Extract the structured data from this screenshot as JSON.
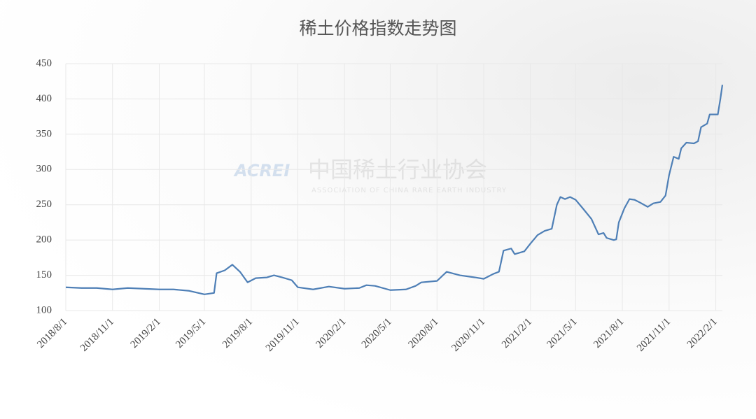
{
  "chart_data": {
    "type": "line",
    "title": "稀土价格指数走势图",
    "annotations": [
      "ACREI",
      "中国稀土行业协会",
      "ASSOCIATION OF CHINA RARE EARTH INDUSTRY"
    ],
    "x": [
      "2018/8/1",
      "2018/9/1",
      "2018/10/1",
      "2018/11/1",
      "2018/12/1",
      "2019/1/1",
      "2019/2/1",
      "2019/3/1",
      "2019/4/1",
      "2019/5/1",
      "2019/5/20",
      "2019/5/25",
      "2019/6/10",
      "2019/6/25",
      "2019/7/10",
      "2019/7/25",
      "2019/8/10",
      "2019/9/1",
      "2019/9/15",
      "2019/10/1",
      "2019/10/20",
      "2019/11/1",
      "2019/12/1",
      "2020/1/1",
      "2020/2/1",
      "2020/3/1",
      "2020/3/15",
      "2020/4/1",
      "2020/5/1",
      "2020/6/1",
      "2020/6/20",
      "2020/7/1",
      "2020/8/1",
      "2020/8/20",
      "2020/9/15",
      "2020/10/15",
      "2020/11/1",
      "2020/11/20",
      "2020/12/1",
      "2020/12/10",
      "2020/12/25",
      "2021/1/1",
      "2021/1/20",
      "2021/2/1",
      "2021/2/15",
      "2021/3/1",
      "2021/3/15",
      "2021/3/25",
      "2021/4/1",
      "2021/4/10",
      "2021/4/20",
      "2021/5/1",
      "2021/5/15",
      "2021/6/1",
      "2021/6/15",
      "2021/6/25",
      "2021/7/1",
      "2021/7/15",
      "2021/7/20",
      "2021/7/25",
      "2021/8/5",
      "2021/8/15",
      "2021/8/25",
      "2021/9/5",
      "2021/9/20",
      "2021/10/1",
      "2021/10/15",
      "2021/10/25",
      "2021/11/1",
      "2021/11/10",
      "2021/11/20",
      "2021/11/25",
      "2021/12/5",
      "2021/12/20",
      "2021/12/28",
      "2022/1/3",
      "2022/1/15",
      "2022/1/20",
      "2022/2/5",
      "2022/2/10",
      "2022/2/14"
    ],
    "series": [
      {
        "color": "#4e7fb6",
        "values": [
          133,
          132,
          132,
          130,
          132,
          131,
          130,
          130,
          128,
          123,
          125,
          153,
          157,
          165,
          155,
          140,
          146,
          147,
          150,
          147,
          143,
          133,
          130,
          134,
          131,
          132,
          136,
          135,
          129,
          130,
          135,
          140,
          142,
          155,
          150,
          147,
          145,
          152,
          155,
          185,
          188,
          180,
          184,
          195,
          207,
          213,
          216,
          250,
          261,
          258,
          261,
          257,
          245,
          230,
          208,
          210,
          203,
          200,
          201,
          225,
          245,
          258,
          257,
          253,
          247,
          252,
          254,
          263,
          292,
          318,
          315,
          330,
          338,
          337,
          340,
          360,
          365,
          378,
          378,
          400,
          420
        ]
      }
    ],
    "xlim": [
      "2018/8/1",
      "2022/2/14"
    ],
    "xticks": [
      "2018/8/1",
      "2018/11/1",
      "2019/2/1",
      "2019/5/1",
      "2019/8/1",
      "2019/11/1",
      "2020/2/1",
      "2020/5/1",
      "2020/8/1",
      "2020/11/1",
      "2021/2/1",
      "2021/5/1",
      "2021/8/1",
      "2021/11/1",
      "2022/2/1"
    ],
    "ylim": [
      100,
      450
    ],
    "yticks": [
      100,
      150,
      200,
      250,
      300,
      350,
      400,
      450
    ],
    "grid": true
  }
}
